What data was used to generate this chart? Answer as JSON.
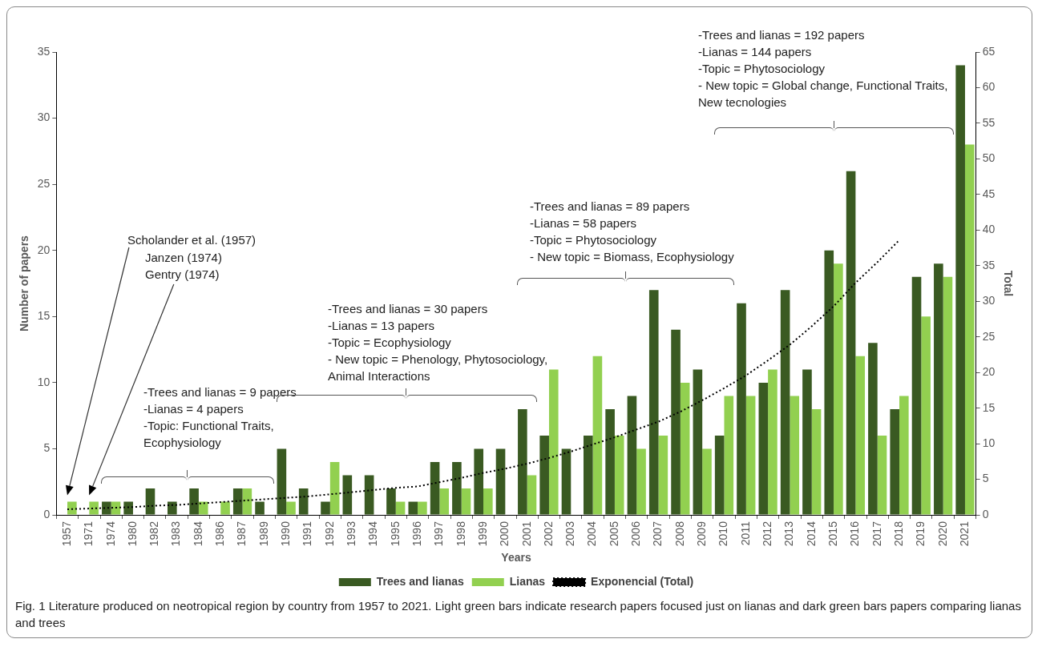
{
  "chart_data": {
    "type": "bar",
    "categories": [
      "1957",
      "1971",
      "1974",
      "1980",
      "1982",
      "1983",
      "1984",
      "1986",
      "1987",
      "1989",
      "1990",
      "1991",
      "1992",
      "1993",
      "1994",
      "1995",
      "1996",
      "1997",
      "1998",
      "1999",
      "2000",
      "2001",
      "2002",
      "2003",
      "2004",
      "2005",
      "2006",
      "2007",
      "2008",
      "2009",
      "2010",
      "2011",
      "2012",
      "2013",
      "2014",
      "2015",
      "2016",
      "2017",
      "2018",
      "2019",
      "2020",
      "2021"
    ],
    "series": [
      {
        "name": "Trees and lianas",
        "color": "#3a5a22",
        "values": [
          0,
          0,
          1,
          1,
          2,
          1,
          2,
          0,
          2,
          1,
          5,
          2,
          1,
          3,
          3,
          2,
          1,
          4,
          4,
          5,
          5,
          8,
          6,
          5,
          6,
          8,
          9,
          17,
          14,
          11,
          6,
          16,
          10,
          17,
          11,
          20,
          26,
          13,
          8,
          18,
          19,
          34
        ]
      },
      {
        "name": "Lianas",
        "color": "#92d050",
        "values": [
          1,
          1,
          1,
          0,
          0,
          0,
          1,
          1,
          2,
          0,
          1,
          0,
          4,
          0,
          0,
          1,
          1,
          2,
          2,
          2,
          0,
          3,
          11,
          0,
          12,
          6,
          5,
          6,
          10,
          5,
          9,
          9,
          11,
          9,
          8,
          19,
          12,
          6,
          9,
          15,
          18,
          28
        ]
      },
      {
        "name": "Exponencial (Total)",
        "type": "line",
        "axis": "y2",
        "color": "#000000",
        "line_style": "dotted",
        "marker": "none",
        "values": [
          0.8,
          0.9,
          1.0,
          1.1,
          1.3,
          1.4,
          1.6,
          1.8,
          2.0,
          2.2,
          2.4,
          2.6,
          2.9,
          3.2,
          3.5,
          3.8,
          4.0,
          4.6,
          5.2,
          5.9,
          6.5,
          7.2,
          8.0,
          8.9,
          9.9,
          10.9,
          12.0,
          13.1,
          14.5,
          16.1,
          17.8,
          19.6,
          21.7,
          23.9,
          26.5,
          29.3,
          32.6,
          35.5,
          38.6,
          null,
          null,
          null
        ]
      }
    ],
    "xlabel": "Years",
    "ylabel": "Number of papers",
    "y2label": "Total",
    "ylim": [
      0,
      35
    ],
    "yticks": [
      0,
      5,
      10,
      15,
      20,
      25,
      30,
      35
    ],
    "y2lim": [
      0,
      65
    ],
    "y2ticks": [
      0,
      5,
      10,
      15,
      20,
      25,
      30,
      35,
      40,
      45,
      50,
      55,
      60,
      65
    ],
    "grid": false,
    "legend": "bottom",
    "annotations": [
      "Scholander et al. (1957)",
      "Janzen (1974)\nGentry (1974)",
      "-Trees and lianas = 9 papers\n-Lianas = 4 papers\n-Topic:  Functional Traits,\nEcophysiology",
      "-Trees and lianas = 30 papers\n-Lianas = 13 papers\n-Topic = Ecophysiology\n- New topic = Phenology, Phytosociology,\nAnimal Interactions",
      "-Trees and lianas = 89 papers\n-Lianas = 58 papers\n-Topic = Phytosociology\n- New topic = Biomass, Ecophysiology",
      "-Trees and lianas = 192 papers\n-Lianas = 144 papers\n-Topic = Phytosociology\n- New topic = Global change, Functional Traits,\nNew tecnologies",
      "Fig. 1  Literature produced on neotropical region by country from 1957 to 2021. Light green bars indicate research papers focused just on lianas and dark green bars papers comparing lianas and trees"
    ]
  }
}
